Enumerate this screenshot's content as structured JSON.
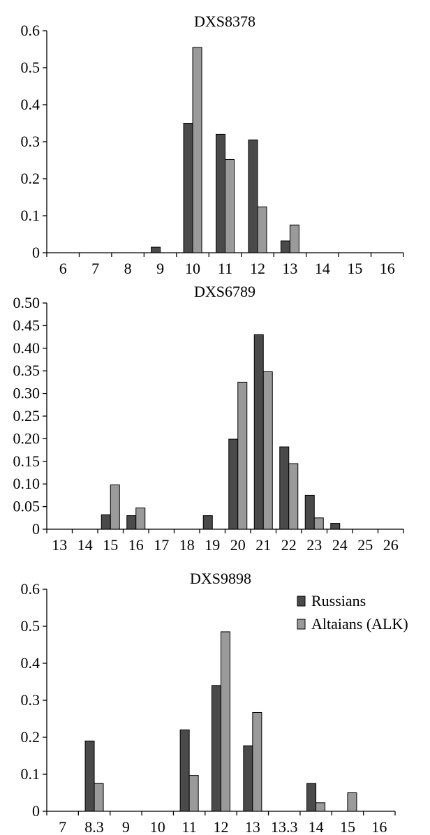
{
  "chart_data": [
    {
      "type": "bar",
      "title": "DXS8378",
      "xlabel": "",
      "ylabel": "",
      "categories": [
        "6",
        "7",
        "8",
        "9",
        "10",
        "11",
        "12",
        "13",
        "14",
        "15",
        "16"
      ],
      "yticks": [
        "0",
        "0.1",
        "0.2",
        "0.3",
        "0.4",
        "0.5",
        "0.6"
      ],
      "ylim": [
        0,
        0.6
      ],
      "series": [
        {
          "name": "Russians",
          "color": "#4a4a4a",
          "values": [
            0,
            0,
            0,
            0.015,
            0.35,
            0.32,
            0.305,
            0.032,
            0,
            0,
            0
          ]
        },
        {
          "name": "Altaians (ALK)",
          "color": "#9a9a9a",
          "values": [
            0,
            0,
            0,
            0,
            0.555,
            0.252,
            0.124,
            0.075,
            0,
            0,
            0
          ]
        }
      ]
    },
    {
      "type": "bar",
      "title": "DXS6789",
      "xlabel": "",
      "ylabel": "",
      "categories": [
        "13",
        "14",
        "15",
        "16",
        "17",
        "18",
        "19",
        "20",
        "21",
        "22",
        "23",
        "24",
        "25",
        "26"
      ],
      "yticks": [
        "0",
        "0.05",
        "0.10",
        "0.15",
        "0.20",
        "0.25",
        "0.30",
        "0.35",
        "0.40",
        "0.45",
        "0.50"
      ],
      "ylim": [
        0,
        0.5
      ],
      "series": [
        {
          "name": "Russians",
          "color": "#4a4a4a",
          "values": [
            0,
            0,
            0.032,
            0.03,
            0,
            0,
            0.03,
            0.199,
            0.43,
            0.182,
            0.075,
            0.013,
            0,
            0
          ]
        },
        {
          "name": "Altaians (ALK)",
          "color": "#9a9a9a",
          "values": [
            0,
            0,
            0.098,
            0.047,
            0,
            0,
            0,
            0.325,
            0.348,
            0.145,
            0.025,
            0,
            0,
            0
          ]
        }
      ]
    },
    {
      "type": "bar",
      "title": "DXS9898",
      "xlabel": "",
      "ylabel": "",
      "categories": [
        "7",
        "8.3",
        "9",
        "10",
        "11",
        "12",
        "13",
        "13.3",
        "14",
        "15",
        "16"
      ],
      "yticks": [
        "0",
        "0.1",
        "0.2",
        "0.3",
        "0.4",
        "0.5",
        "0.6"
      ],
      "ylim": [
        0,
        0.6
      ],
      "legend": {
        "placement": "top-right",
        "items": [
          {
            "label": "Russians",
            "color": "#4a4a4a"
          },
          {
            "label": "Altaians (ALK)",
            "color": "#9a9a9a"
          }
        ]
      },
      "series": [
        {
          "name": "Russians",
          "color": "#4a4a4a",
          "values": [
            0,
            0.19,
            0,
            0,
            0.22,
            0.34,
            0.177,
            0,
            0.075,
            0,
            0
          ]
        },
        {
          "name": "Altaians (ALK)",
          "color": "#9a9a9a",
          "values": [
            0,
            0.075,
            0,
            0,
            0.097,
            0.485,
            0.267,
            0,
            0.023,
            0.05,
            0
          ]
        }
      ]
    }
  ]
}
